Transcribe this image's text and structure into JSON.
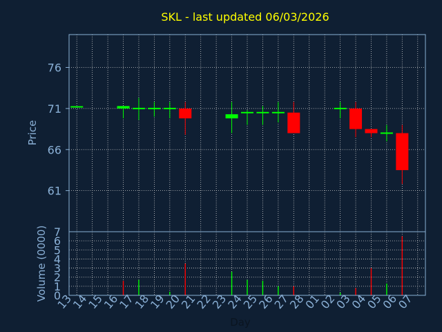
{
  "chart_data": [
    {
      "type": "candlestick",
      "title": "SKL - last updated 06/03/2026",
      "ylabel": "Price",
      "ylim": [
        56,
        80
      ],
      "yticks": [
        61,
        66,
        71,
        76
      ],
      "grid": true,
      "colors": {
        "up": "#00ff00",
        "down": "#ff0000",
        "background": "#0f1f33",
        "grid": "#d0d0d0",
        "axis": "#8ab0d6",
        "title": "#ffff00"
      },
      "candles": [
        {
          "day": "13",
          "open": 71.2,
          "high": 71.2,
          "low": 71.2,
          "close": 71.2
        },
        {
          "day": "16",
          "open": 71.0,
          "high": 71.3,
          "low": 69.8,
          "close": 71.3
        },
        {
          "day": "17",
          "open": 71.0,
          "high": 72.3,
          "low": 69.6,
          "close": 71.0
        },
        {
          "day": "18",
          "open": 71.0,
          "high": 71.8,
          "low": 70.0,
          "close": 71.0
        },
        {
          "day": "19",
          "open": 71.0,
          "high": 71.8,
          "low": 69.8,
          "close": 71.0
        },
        {
          "day": "20",
          "open": 71.0,
          "high": 71.8,
          "low": 67.8,
          "close": 69.8
        },
        {
          "day": "23",
          "open": 69.8,
          "high": 71.8,
          "low": 68.0,
          "close": 70.3
        },
        {
          "day": "24",
          "open": 70.5,
          "high": 70.8,
          "low": 69.0,
          "close": 70.5
        },
        {
          "day": "25",
          "open": 70.5,
          "high": 71.3,
          "low": 69.0,
          "close": 70.5
        },
        {
          "day": "26",
          "open": 70.5,
          "high": 71.8,
          "low": 69.3,
          "close": 70.5
        },
        {
          "day": "27",
          "open": 70.5,
          "high": 71.8,
          "low": 68.0,
          "close": 68.0
        },
        {
          "day": "02",
          "open": 71.0,
          "high": 71.8,
          "low": 69.8,
          "close": 71.0
        },
        {
          "day": "03",
          "open": 71.0,
          "high": 71.8,
          "low": 67.5,
          "close": 68.5
        },
        {
          "day": "04",
          "open": 68.5,
          "high": 68.5,
          "low": 67.5,
          "close": 68.0
        },
        {
          "day": "05",
          "open": 68.0,
          "high": 69.0,
          "low": 67.0,
          "close": 68.0
        },
        {
          "day": "06",
          "open": 68.0,
          "high": 69.0,
          "low": 61.8,
          "close": 63.5
        }
      ]
    },
    {
      "type": "bar",
      "ylabel": "Volume (0000)",
      "xlabel": "Day",
      "ylim": [
        0,
        7
      ],
      "yticks": [
        0,
        1,
        2,
        3,
        4,
        5,
        6,
        7
      ],
      "grid": true,
      "categories": [
        "13",
        "14",
        "15",
        "16",
        "17",
        "18",
        "19",
        "20",
        "21",
        "22",
        "23",
        "24",
        "25",
        "26",
        "27",
        "28",
        "01",
        "02",
        "03",
        "04",
        "05",
        "06",
        "07"
      ],
      "volumes": [
        {
          "day": "16",
          "value": 1.6,
          "direction": "down"
        },
        {
          "day": "17",
          "value": 1.7,
          "direction": "up"
        },
        {
          "day": "19",
          "value": 0.4,
          "direction": "up"
        },
        {
          "day": "20",
          "value": 3.5,
          "direction": "down"
        },
        {
          "day": "23",
          "value": 2.6,
          "direction": "up"
        },
        {
          "day": "24",
          "value": 1.7,
          "direction": "up"
        },
        {
          "day": "25",
          "value": 1.6,
          "direction": "up"
        },
        {
          "day": "26",
          "value": 1.0,
          "direction": "up"
        },
        {
          "day": "27",
          "value": 1.0,
          "direction": "down"
        },
        {
          "day": "02",
          "value": 0.3,
          "direction": "up"
        },
        {
          "day": "03",
          "value": 0.8,
          "direction": "down"
        },
        {
          "day": "04",
          "value": 3.0,
          "direction": "down"
        },
        {
          "day": "05",
          "value": 1.3,
          "direction": "up"
        },
        {
          "day": "06",
          "value": 6.5,
          "direction": "down"
        }
      ]
    }
  ]
}
